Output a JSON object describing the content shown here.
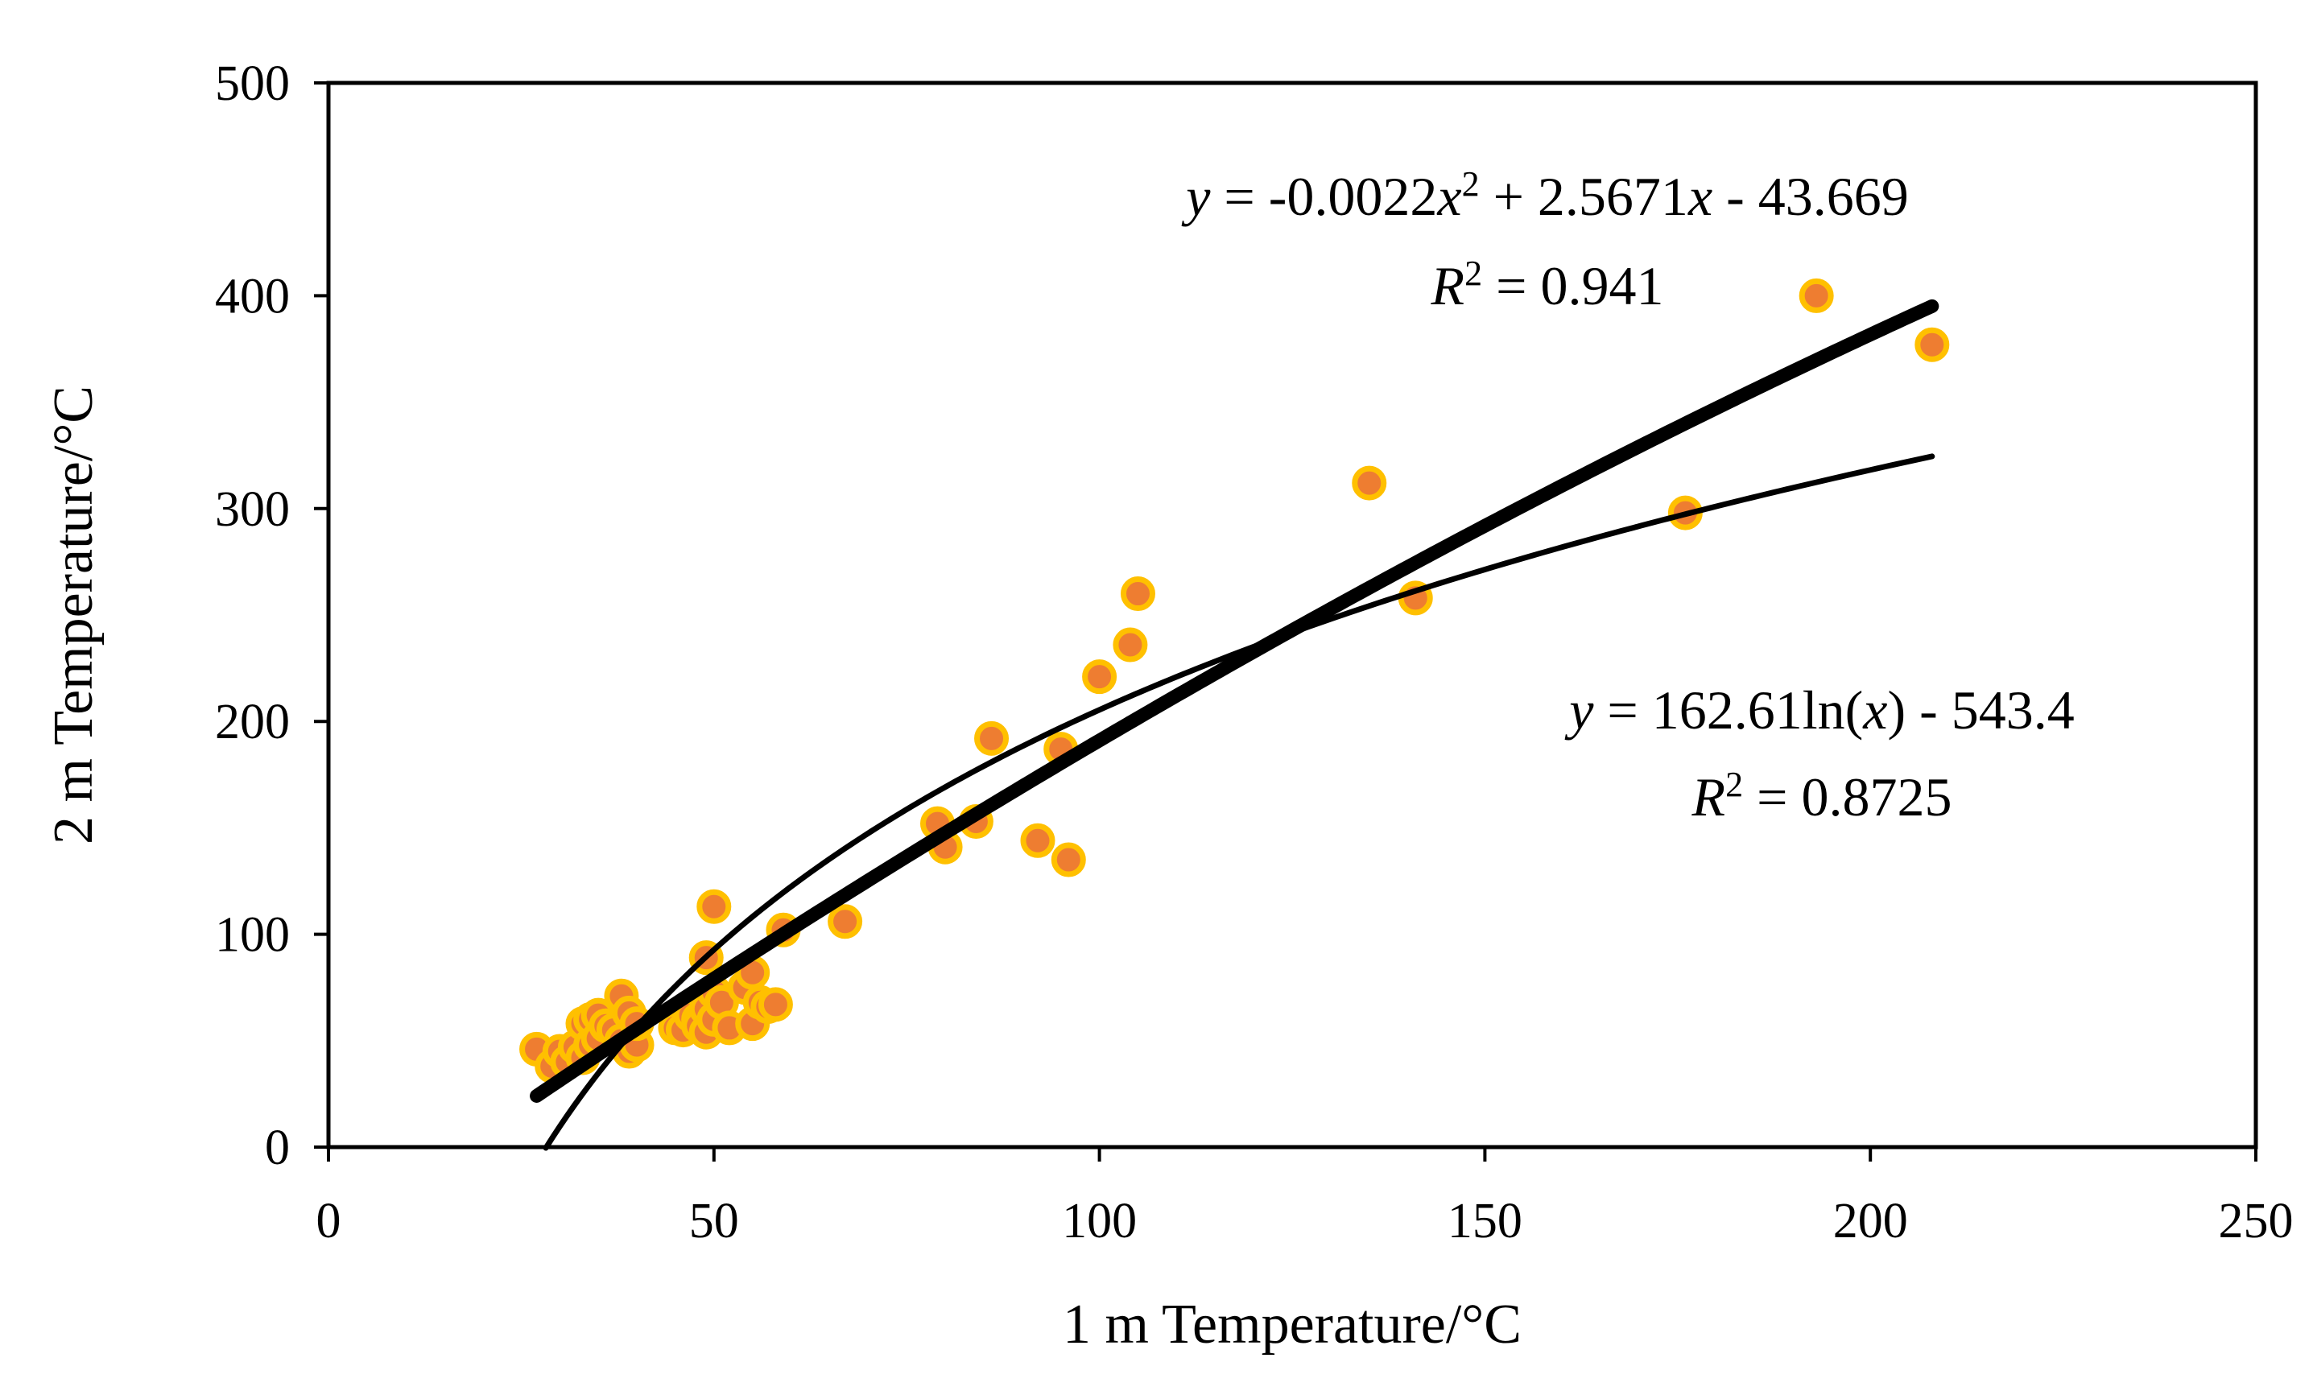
{
  "chart_data": {
    "type": "scatter",
    "xlabel": "1 m Temperature/°C",
    "ylabel": "2 m Temperature/°C",
    "xlim": [
      0,
      250
    ],
    "ylim": [
      0,
      500
    ],
    "x_ticks": [
      0,
      50,
      100,
      150,
      200,
      250
    ],
    "y_ticks": [
      0,
      100,
      200,
      300,
      400,
      500
    ],
    "x_tick_labels": [
      "0",
      "50",
      "100",
      "150",
      "200",
      "250"
    ],
    "y_tick_labels": [
      "0",
      "100",
      "200",
      "300",
      "400",
      "500"
    ],
    "grid": false,
    "legend": "none",
    "marker": {
      "fill": "#ee7d31",
      "stroke": "#ffc000"
    },
    "series": [
      {
        "type": "scatter",
        "x": [
          27,
          29,
          30,
          31,
          32,
          33,
          33,
          34,
          34,
          35,
          35,
          36,
          37,
          38,
          38,
          39,
          39,
          40,
          40,
          45,
          46,
          47,
          48,
          48,
          49,
          49,
          49,
          50,
          50,
          50,
          51,
          52,
          54,
          55,
          55,
          56,
          57,
          58,
          59,
          67,
          79,
          80,
          84,
          86,
          92,
          95,
          96,
          100,
          104,
          105,
          135,
          141,
          176,
          193,
          208
        ],
        "y": [
          46,
          38,
          45,
          40,
          47,
          42,
          58,
          48,
          60,
          51,
          62,
          57,
          55,
          71,
          50,
          63,
          45,
          48,
          58,
          56,
          55,
          62,
          60,
          57,
          54,
          65,
          89,
          73,
          113,
          60,
          68,
          56,
          75,
          82,
          58,
          68,
          66,
          67,
          102,
          106,
          152,
          141,
          153,
          192,
          144,
          187,
          135,
          221,
          236,
          260,
          312,
          258,
          298,
          400,
          377
        ]
      }
    ],
    "trendlines": [
      {
        "kind": "polynomial",
        "coefficients": [
          -0.0022,
          2.5671,
          -43.669
        ],
        "x_range": [
          27,
          208
        ],
        "r2": 0.941
      },
      {
        "kind": "logarithmic",
        "a": 162.61,
        "b": -543.4,
        "x_range": [
          28.2,
          208
        ],
        "r2": 0.8725
      }
    ],
    "annotations": {
      "poly": {
        "y": "y",
        "eq": " = -0.0022",
        "x1": "x",
        "sup1": "2",
        "mid": " + 2.5671",
        "x2": "x",
        "tail": " - 43.669",
        "R": "R",
        "sup2": "2",
        "r2": " = 0.941"
      },
      "log": {
        "y": "y",
        "eq": " = 162.61ln(",
        "x": "x",
        "tail": ") - 543.4",
        "R": "R",
        "sup2": "2",
        "r2": " = 0.8725"
      }
    }
  }
}
